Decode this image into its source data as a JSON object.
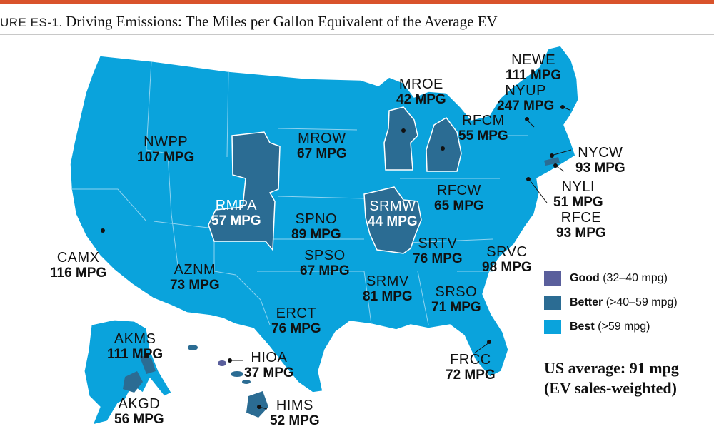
{
  "header": {
    "figure_label": "URE ES-1.",
    "title": "Driving Emissions: The Miles per Gallon Equivalent of the Average EV"
  },
  "colors": {
    "accent_bar": "#d9532b",
    "good": "#5a5f9c",
    "better": "#2b6c93",
    "best": "#0aa3dc",
    "region_border": "#8fd3f0"
  },
  "regions": [
    {
      "code": "NEWE",
      "mpg": "111 MPG",
      "category": "best"
    },
    {
      "code": "NYUP",
      "mpg": "247 MPG",
      "category": "best"
    },
    {
      "code": "MROE",
      "mpg": "42 MPG",
      "category": "better"
    },
    {
      "code": "RFCM",
      "mpg": "55 MPG",
      "category": "better"
    },
    {
      "code": "NWPP",
      "mpg": "107 MPG",
      "category": "best"
    },
    {
      "code": "MROW",
      "mpg": "67 MPG",
      "category": "best"
    },
    {
      "code": "NYCW",
      "mpg": "93 MPG",
      "category": "best"
    },
    {
      "code": "NYLI",
      "mpg": "51 MPG",
      "category": "better"
    },
    {
      "code": "RMPA",
      "mpg": "57 MPG",
      "category": "better"
    },
    {
      "code": "SRMW",
      "mpg": "44 MPG",
      "category": "better"
    },
    {
      "code": "RFCW",
      "mpg": "65 MPG",
      "category": "best"
    },
    {
      "code": "SPNO",
      "mpg": "89 MPG",
      "category": "best"
    },
    {
      "code": "RFCE",
      "mpg": "93 MPG",
      "category": "best"
    },
    {
      "code": "CAMX",
      "mpg": "116 MPG",
      "category": "best"
    },
    {
      "code": "SRTV",
      "mpg": "76 MPG",
      "category": "best"
    },
    {
      "code": "SRVC",
      "mpg": "98 MPG",
      "category": "best"
    },
    {
      "code": "AZNM",
      "mpg": "73 MPG",
      "category": "best"
    },
    {
      "code": "SPSO",
      "mpg": "67 MPG",
      "category": "best"
    },
    {
      "code": "SRMV",
      "mpg": "81 MPG",
      "category": "best"
    },
    {
      "code": "SRSO",
      "mpg": "71 MPG",
      "category": "best"
    },
    {
      "code": "ERCT",
      "mpg": "76 MPG",
      "category": "best"
    },
    {
      "code": "AKMS",
      "mpg": "111 MPG",
      "category": "best"
    },
    {
      "code": "HIOA",
      "mpg": "37 MPG",
      "category": "good"
    },
    {
      "code": "FRCC",
      "mpg": "72 MPG",
      "category": "best"
    },
    {
      "code": "AKGD",
      "mpg": "56 MPG",
      "category": "better"
    },
    {
      "code": "HIMS",
      "mpg": "52 MPG",
      "category": "better"
    }
  ],
  "legend": {
    "items": [
      {
        "label": "Good",
        "range": "(32–40 mpg)",
        "color": "#5a5f9c"
      },
      {
        "label": "Better",
        "range": "(>40–59 mpg)",
        "color": "#2b6c93"
      },
      {
        "label": "Best",
        "range": "(>59 mpg)",
        "color": "#0aa3dc"
      }
    ]
  },
  "summary": {
    "line1": "US average: 91 mpg",
    "line2": "(EV sales-weighted)"
  }
}
